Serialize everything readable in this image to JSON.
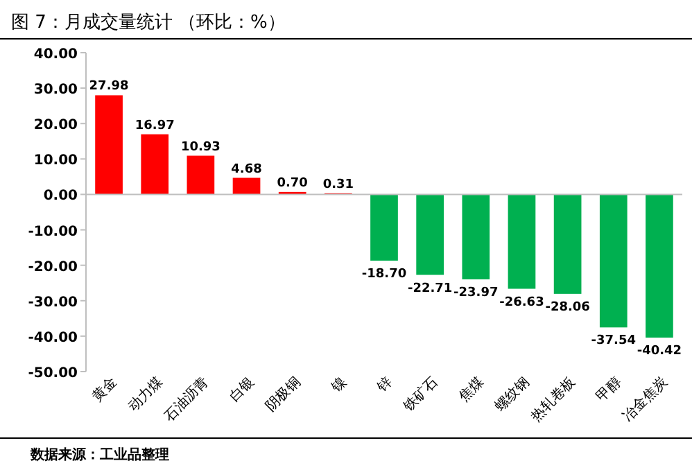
{
  "chart_data": {
    "type": "bar",
    "title": "图 7：月成交量统计 （环比：%）",
    "categories": [
      "黄金",
      "动力煤",
      "石油沥青",
      "白银",
      "阴极铜",
      "镍",
      "锌",
      "铁矿石",
      "焦煤",
      "螺纹钢",
      "热轧卷板",
      "甲醇",
      "冶金焦炭"
    ],
    "values": [
      27.98,
      16.97,
      10.93,
      4.68,
      0.7,
      0.31,
      -18.7,
      -22.71,
      -23.97,
      -26.63,
      -28.06,
      -37.54,
      -40.42
    ],
    "colors": [
      "#ff0000",
      "#ff0000",
      "#ff0000",
      "#ff0000",
      "#ff0000",
      "#ff0000",
      "#00b050",
      "#00b050",
      "#00b050",
      "#00b050",
      "#00b050",
      "#00b050",
      "#00b050"
    ],
    "value_labels": [
      "27.98",
      "16.97",
      "10.93",
      "4.68",
      "0.70",
      "0.31",
      "-18.70",
      "-22.71",
      "-23.97",
      "-26.63",
      "-28.06",
      "-37.54",
      "-40.42"
    ],
    "ylim": [
      -50,
      40
    ],
    "yticks": [
      {
        "value": 40,
        "label": "40.00"
      },
      {
        "value": 30,
        "label": "30.00"
      },
      {
        "value": 20,
        "label": "20.00"
      },
      {
        "value": 10,
        "label": "10.00"
      },
      {
        "value": 0,
        "label": "0.00"
      },
      {
        "value": -10,
        "label": "-10.00"
      },
      {
        "value": -20,
        "label": "-20.00"
      },
      {
        "value": -30,
        "label": "-30.00"
      },
      {
        "value": -40,
        "label": "-40.00"
      },
      {
        "value": -50,
        "label": "-50.00"
      }
    ],
    "annotations": [
      "数据来源：工业品整理"
    ]
  }
}
